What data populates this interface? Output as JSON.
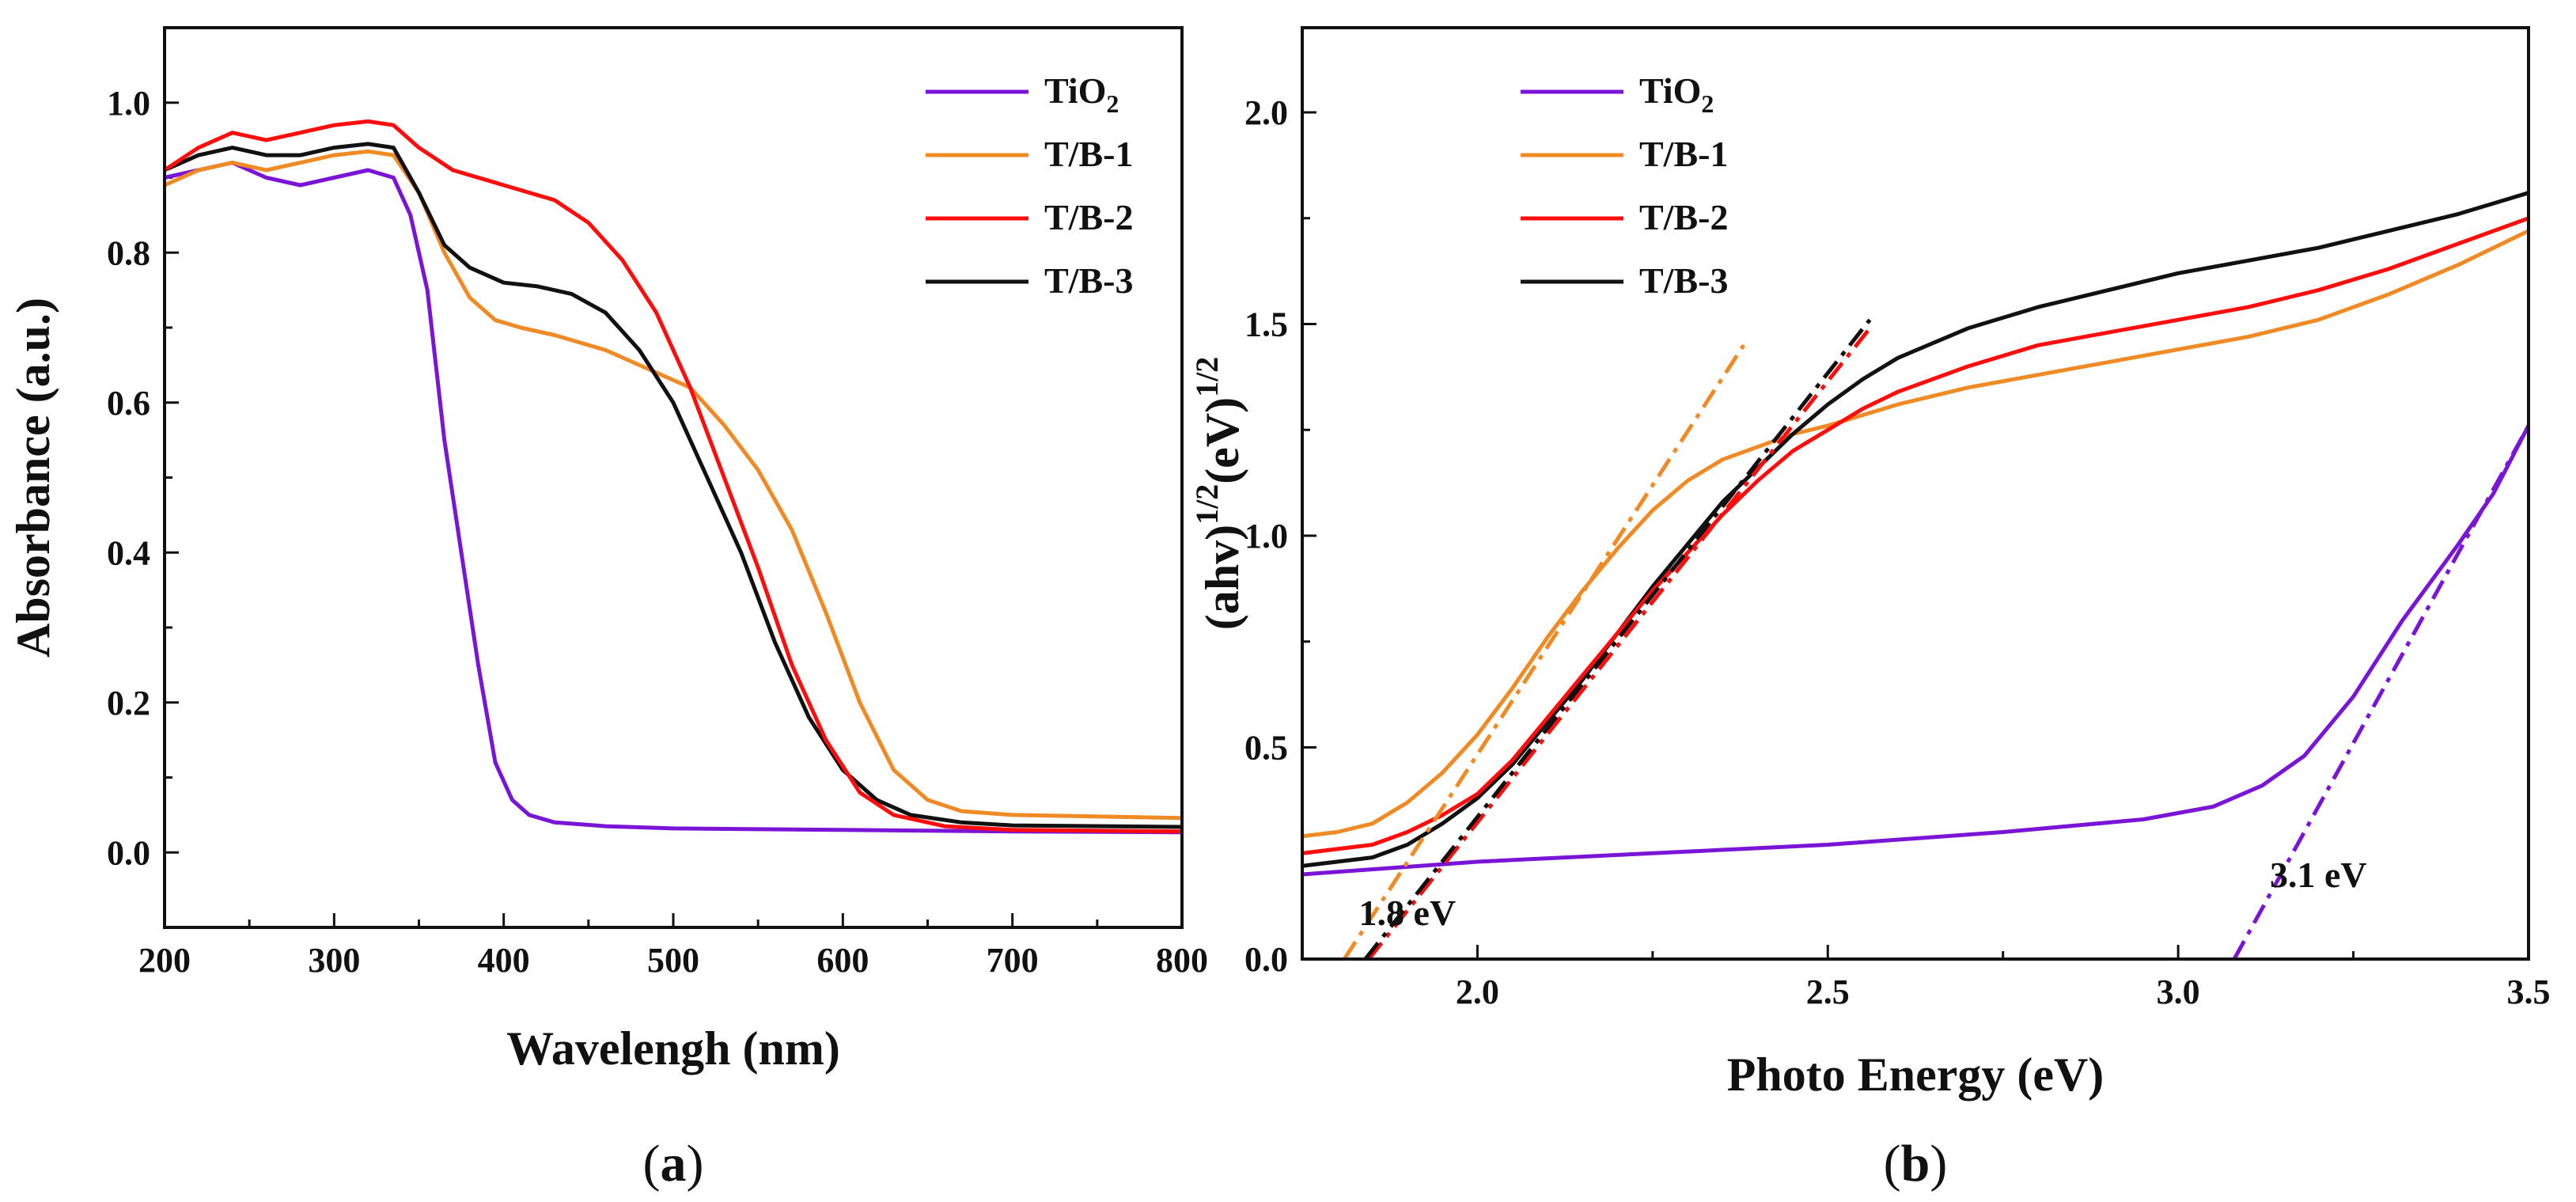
{
  "colors": {
    "TiO2": "#7a14d6",
    "T/B-1": "#f08a24",
    "T/B-2": "#ff0d0d",
    "T/B-3": "#111111"
  },
  "legend_labels": {
    "TiO2": {
      "base": "TiO",
      "sub": "2"
    },
    "T/B-1": "T/B-1",
    "T/B-2": "T/B-2",
    "T/B-3": "T/B-3"
  },
  "panel_labels": {
    "a": "a",
    "b": "b"
  },
  "chart_data": [
    {
      "type": "line",
      "panel": "a",
      "xlabel": "Wavelengh (nm)",
      "ylabel": "Absorbance (a.u.)",
      "xlim": [
        200,
        800
      ],
      "ylim": [
        -0.1,
        1.1
      ],
      "xticks": [
        200,
        300,
        400,
        500,
        600,
        700,
        800
      ],
      "yticks": [
        0.0,
        0.2,
        0.4,
        0.6,
        0.8,
        1.0
      ],
      "legend_position": "top-right",
      "series": [
        {
          "name": "TiO2",
          "points": [
            [
              200,
              0.9
            ],
            [
              220,
              0.91
            ],
            [
              240,
              0.92
            ],
            [
              260,
              0.9
            ],
            [
              280,
              0.89
            ],
            [
              300,
              0.9
            ],
            [
              320,
              0.91
            ],
            [
              335,
              0.9
            ],
            [
              345,
              0.85
            ],
            [
              355,
              0.75
            ],
            [
              365,
              0.55
            ],
            [
              375,
              0.4
            ],
            [
              385,
              0.25
            ],
            [
              395,
              0.12
            ],
            [
              405,
              0.07
            ],
            [
              415,
              0.05
            ],
            [
              430,
              0.04
            ],
            [
              460,
              0.035
            ],
            [
              500,
              0.032
            ],
            [
              600,
              0.03
            ],
            [
              700,
              0.028
            ],
            [
              800,
              0.027
            ]
          ]
        },
        {
          "name": "T/B-1",
          "points": [
            [
              200,
              0.89
            ],
            [
              220,
              0.91
            ],
            [
              240,
              0.92
            ],
            [
              260,
              0.91
            ],
            [
              280,
              0.92
            ],
            [
              300,
              0.93
            ],
            [
              320,
              0.935
            ],
            [
              335,
              0.93
            ],
            [
              350,
              0.88
            ],
            [
              365,
              0.8
            ],
            [
              380,
              0.74
            ],
            [
              395,
              0.71
            ],
            [
              410,
              0.7
            ],
            [
              430,
              0.69
            ],
            [
              460,
              0.67
            ],
            [
              490,
              0.64
            ],
            [
              510,
              0.62
            ],
            [
              530,
              0.57
            ],
            [
              550,
              0.51
            ],
            [
              570,
              0.43
            ],
            [
              590,
              0.32
            ],
            [
              610,
              0.2
            ],
            [
              630,
              0.11
            ],
            [
              650,
              0.07
            ],
            [
              670,
              0.055
            ],
            [
              700,
              0.05
            ],
            [
              800,
              0.046
            ]
          ]
        },
        {
          "name": "T/B-2",
          "points": [
            [
              200,
              0.91
            ],
            [
              220,
              0.94
            ],
            [
              240,
              0.96
            ],
            [
              260,
              0.95
            ],
            [
              280,
              0.96
            ],
            [
              300,
              0.97
            ],
            [
              320,
              0.975
            ],
            [
              335,
              0.97
            ],
            [
              350,
              0.94
            ],
            [
              370,
              0.91
            ],
            [
              400,
              0.89
            ],
            [
              430,
              0.87
            ],
            [
              450,
              0.84
            ],
            [
              470,
              0.79
            ],
            [
              490,
              0.72
            ],
            [
              510,
              0.62
            ],
            [
              530,
              0.5
            ],
            [
              550,
              0.38
            ],
            [
              570,
              0.25
            ],
            [
              590,
              0.15
            ],
            [
              610,
              0.08
            ],
            [
              630,
              0.05
            ],
            [
              660,
              0.035
            ],
            [
              700,
              0.03
            ],
            [
              800,
              0.028
            ]
          ]
        },
        {
          "name": "T/B-3",
          "points": [
            [
              200,
              0.91
            ],
            [
              220,
              0.93
            ],
            [
              240,
              0.94
            ],
            [
              260,
              0.93
            ],
            [
              280,
              0.93
            ],
            [
              300,
              0.94
            ],
            [
              320,
              0.945
            ],
            [
              335,
              0.94
            ],
            [
              350,
              0.88
            ],
            [
              365,
              0.81
            ],
            [
              380,
              0.78
            ],
            [
              400,
              0.76
            ],
            [
              420,
              0.755
            ],
            [
              440,
              0.745
            ],
            [
              460,
              0.72
            ],
            [
              480,
              0.67
            ],
            [
              500,
              0.6
            ],
            [
              520,
              0.5
            ],
            [
              540,
              0.4
            ],
            [
              560,
              0.28
            ],
            [
              580,
              0.18
            ],
            [
              600,
              0.11
            ],
            [
              620,
              0.07
            ],
            [
              640,
              0.05
            ],
            [
              670,
              0.04
            ],
            [
              700,
              0.036
            ],
            [
              800,
              0.034
            ]
          ]
        }
      ]
    },
    {
      "type": "line",
      "panel": "b",
      "xlabel": "Photo Energy (eV)",
      "ylabel": {
        "base1": "(ahv)",
        "sup1": "1/2",
        "base2": "(eV)",
        "sup2": "1/2"
      },
      "xlim": [
        1.75,
        3.5
      ],
      "ylim": [
        0.0,
        2.2
      ],
      "xticks": [
        2.0,
        2.5,
        3.0,
        3.5
      ],
      "yticks": [
        0.0,
        0.5,
        1.0,
        1.5,
        2.0
      ],
      "legend_position": "top-left",
      "series": [
        {
          "name": "TiO2",
          "points": [
            [
              1.75,
              0.2
            ],
            [
              2.0,
              0.23
            ],
            [
              2.25,
              0.25
            ],
            [
              2.5,
              0.27
            ],
            [
              2.75,
              0.3
            ],
            [
              2.95,
              0.33
            ],
            [
              3.05,
              0.36
            ],
            [
              3.12,
              0.41
            ],
            [
              3.18,
              0.48
            ],
            [
              3.25,
              0.62
            ],
            [
              3.32,
              0.8
            ],
            [
              3.4,
              0.98
            ],
            [
              3.45,
              1.1
            ],
            [
              3.5,
              1.26
            ]
          ]
        },
        {
          "name": "T/B-1",
          "points": [
            [
              1.75,
              0.29
            ],
            [
              1.8,
              0.3
            ],
            [
              1.85,
              0.32
            ],
            [
              1.9,
              0.37
            ],
            [
              1.95,
              0.44
            ],
            [
              2.0,
              0.53
            ],
            [
              2.05,
              0.64
            ],
            [
              2.1,
              0.76
            ],
            [
              2.15,
              0.87
            ],
            [
              2.2,
              0.97
            ],
            [
              2.25,
              1.06
            ],
            [
              2.3,
              1.13
            ],
            [
              2.35,
              1.18
            ],
            [
              2.4,
              1.21
            ],
            [
              2.45,
              1.24
            ],
            [
              2.5,
              1.26
            ],
            [
              2.6,
              1.31
            ],
            [
              2.7,
              1.35
            ],
            [
              2.8,
              1.38
            ],
            [
              2.9,
              1.41
            ],
            [
              3.0,
              1.44
            ],
            [
              3.1,
              1.47
            ],
            [
              3.2,
              1.51
            ],
            [
              3.3,
              1.57
            ],
            [
              3.4,
              1.64
            ],
            [
              3.5,
              1.72
            ]
          ]
        },
        {
          "name": "T/B-2",
          "points": [
            [
              1.75,
              0.25
            ],
            [
              1.85,
              0.27
            ],
            [
              1.9,
              0.3
            ],
            [
              1.95,
              0.34
            ],
            [
              2.0,
              0.39
            ],
            [
              2.05,
              0.47
            ],
            [
              2.1,
              0.57
            ],
            [
              2.15,
              0.67
            ],
            [
              2.2,
              0.77
            ],
            [
              2.25,
              0.87
            ],
            [
              2.3,
              0.96
            ],
            [
              2.35,
              1.05
            ],
            [
              2.4,
              1.13
            ],
            [
              2.45,
              1.2
            ],
            [
              2.5,
              1.25
            ],
            [
              2.55,
              1.3
            ],
            [
              2.6,
              1.34
            ],
            [
              2.7,
              1.4
            ],
            [
              2.8,
              1.45
            ],
            [
              2.9,
              1.48
            ],
            [
              3.0,
              1.51
            ],
            [
              3.1,
              1.54
            ],
            [
              3.2,
              1.58
            ],
            [
              3.3,
              1.63
            ],
            [
              3.4,
              1.69
            ],
            [
              3.5,
              1.75
            ]
          ]
        },
        {
          "name": "T/B-3",
          "points": [
            [
              1.75,
              0.22
            ],
            [
              1.85,
              0.24
            ],
            [
              1.9,
              0.27
            ],
            [
              1.95,
              0.32
            ],
            [
              2.0,
              0.38
            ],
            [
              2.05,
              0.46
            ],
            [
              2.1,
              0.56
            ],
            [
              2.15,
              0.66
            ],
            [
              2.2,
              0.77
            ],
            [
              2.25,
              0.88
            ],
            [
              2.3,
              0.98
            ],
            [
              2.35,
              1.08
            ],
            [
              2.4,
              1.16
            ],
            [
              2.45,
              1.24
            ],
            [
              2.5,
              1.31
            ],
            [
              2.55,
              1.37
            ],
            [
              2.6,
              1.42
            ],
            [
              2.7,
              1.49
            ],
            [
              2.8,
              1.54
            ],
            [
              2.9,
              1.58
            ],
            [
              3.0,
              1.62
            ],
            [
              3.1,
              1.65
            ],
            [
              3.2,
              1.68
            ],
            [
              3.3,
              1.72
            ],
            [
              3.4,
              1.76
            ],
            [
              3.5,
              1.81
            ]
          ]
        }
      ],
      "tangent_lines": [
        {
          "series": "T/B-1",
          "from": [
            1.81,
            0.0
          ],
          "to": [
            2.38,
            1.45
          ]
        },
        {
          "series": "T/B-2",
          "from": [
            1.845,
            0.0
          ],
          "to": [
            2.56,
            1.49
          ]
        },
        {
          "series": "T/B-3",
          "from": [
            1.84,
            0.0
          ],
          "to": [
            2.56,
            1.51
          ]
        },
        {
          "series": "TiO2",
          "from": [
            3.08,
            0.0
          ],
          "to": [
            3.5,
            1.26
          ]
        }
      ],
      "annotations": [
        {
          "text": "1.8 eV",
          "x": 1.9,
          "y": 0.08
        },
        {
          "text": "3.1 eV",
          "x": 3.2,
          "y": 0.17
        }
      ]
    }
  ]
}
